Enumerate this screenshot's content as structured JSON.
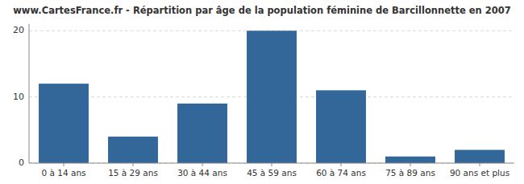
{
  "chart_data": {
    "type": "bar",
    "title": "www.CartesFrance.fr - Répartition par âge de la population féminine de Barcillonnette en 2007",
    "categories": [
      "0 à 14 ans",
      "15 à 29 ans",
      "30 à 44 ans",
      "45 à 59 ans",
      "60 à 74 ans",
      "75 à 89 ans",
      "90 ans et plus"
    ],
    "values": [
      12,
      4,
      9,
      20,
      11,
      1,
      2
    ],
    "color": "#336699",
    "ylim": [
      0,
      21
    ],
    "yticks": [
      0,
      10,
      20
    ],
    "grid": true
  }
}
